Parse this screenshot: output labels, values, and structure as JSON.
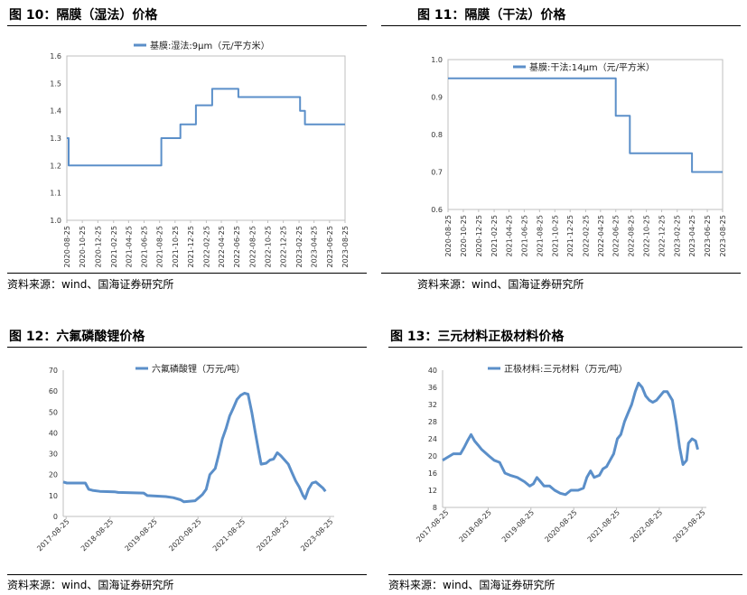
{
  "panels": [
    {
      "title": "图 10：隔膜（湿法）价格",
      "source": "资料来源：wind、国海证券研究所",
      "chart_data": {
        "type": "line",
        "title": "",
        "legend": "基膜:湿法:9μm（元/平方米）",
        "legend_position": "top",
        "xlabel": "",
        "ylabel": "",
        "ylim": [
          1.0,
          1.6
        ],
        "yticks": [
          1.0,
          1.1,
          1.2,
          1.3,
          1.4,
          1.5,
          1.6
        ],
        "ytick_labels": [
          "1.0",
          "1.1",
          "1.2",
          "1.3",
          "1.4",
          "1.5",
          "1.6"
        ],
        "xticks": [
          "2020-08-25",
          "2020-10-25",
          "2020-12-25",
          "2021-02-25",
          "2021-04-25",
          "2021-06-25",
          "2021-08-25",
          "2021-10-25",
          "2021-12-25",
          "2022-02-25",
          "2022-04-25",
          "2022-06-25",
          "2022-08-25",
          "2022-10-25",
          "2022-12-25",
          "2023-02-25",
          "2023-04-25",
          "2023-06-25",
          "2023-08-25"
        ],
        "xrange": [
          "2020-08-25",
          "2023-08-25"
        ],
        "step": true,
        "series": [
          {
            "color": "#5b8fc9",
            "points": [
              [
                "2020-08-25",
                1.3
              ],
              [
                "2020-09-01",
                1.2
              ],
              [
                "2021-09-01",
                1.3
              ],
              [
                "2021-11-15",
                1.35
              ],
              [
                "2022-01-15",
                1.42
              ],
              [
                "2022-03-20",
                1.48
              ],
              [
                "2022-07-01",
                1.45
              ],
              [
                "2023-03-01",
                1.4
              ],
              [
                "2023-03-20",
                1.35
              ],
              [
                "2023-08-25",
                1.35
              ]
            ]
          }
        ]
      }
    },
    {
      "title": "图 11：隔膜（干法）价格",
      "source": "资料来源：wind、国海证券研究所",
      "chart_data": {
        "type": "line",
        "title": "",
        "legend": "基膜:干法:14μm（元/平方米）",
        "legend_position": "top",
        "xlabel": "",
        "ylabel": "",
        "ylim": [
          0.6,
          1.0
        ],
        "yticks": [
          0.6,
          0.7,
          0.8,
          0.9,
          1.0
        ],
        "ytick_labels": [
          "0.6",
          "0.7",
          "0.8",
          "0.9",
          "1.0"
        ],
        "xticks": [
          "2020-08-25",
          "2020-10-25",
          "2020-12-25",
          "2021-02-25",
          "2021-04-25",
          "2021-06-25",
          "2021-08-25",
          "2021-10-25",
          "2021-12-25",
          "2022-02-25",
          "2022-04-25",
          "2022-06-25",
          "2022-08-25",
          "2022-10-25",
          "2022-12-25",
          "2023-02-25",
          "2023-04-25",
          "2023-06-25",
          "2023-08-25"
        ],
        "xrange": [
          "2020-08-25",
          "2023-08-25"
        ],
        "step": true,
        "series": [
          {
            "color": "#5b8fc9",
            "points": [
              [
                "2020-08-25",
                0.95
              ],
              [
                "2022-06-25",
                0.85
              ],
              [
                "2022-08-20",
                0.75
              ],
              [
                "2023-04-25",
                0.7
              ],
              [
                "2023-08-25",
                0.7
              ]
            ]
          }
        ]
      }
    },
    {
      "title": "图 12：六氟磷酸锂价格",
      "source": "资料来源：wind、国海证券研究所",
      "chart_data": {
        "type": "line",
        "title": "",
        "legend": "六氟磷酸锂（万元/吨）",
        "legend_position": "top",
        "xlabel": "",
        "ylabel": "",
        "ylim": [
          0,
          70
        ],
        "yticks": [
          0,
          10,
          20,
          30,
          40,
          50,
          60,
          70
        ],
        "ytick_labels": [
          "0",
          "10",
          "20",
          "30",
          "40",
          "50",
          "60",
          "70"
        ],
        "xticks": [
          "2017-08-25",
          "2018-08-25",
          "2019-08-25",
          "2020-08-25",
          "2021-08-25",
          "2022-08-25",
          "2023-08-25"
        ],
        "xrange": [
          "2017-08-01",
          "2023-10-01"
        ],
        "step": false,
        "series": [
          {
            "color": "#5b8fc9",
            "points": [
              [
                "2017-08-01",
                16.5
              ],
              [
                "2017-09-01",
                16
              ],
              [
                "2018-02-01",
                16
              ],
              [
                "2018-03-01",
                13
              ],
              [
                "2018-04-01",
                12.5
              ],
              [
                "2018-06-01",
                12
              ],
              [
                "2018-10-01",
                11.8
              ],
              [
                "2018-11-01",
                11.5
              ],
              [
                "2019-06-01",
                11.2
              ],
              [
                "2019-07-01",
                10
              ],
              [
                "2019-12-01",
                9.5
              ],
              [
                "2020-02-01",
                9
              ],
              [
                "2020-04-01",
                8
              ],
              [
                "2020-05-01",
                7
              ],
              [
                "2020-08-01",
                7.5
              ],
              [
                "2020-09-01",
                9
              ],
              [
                "2020-10-01",
                10.5
              ],
              [
                "2020-11-01",
                13
              ],
              [
                "2020-12-01",
                20
              ],
              [
                "2021-01-15",
                23
              ],
              [
                "2021-02-15",
                30
              ],
              [
                "2021-03-15",
                37
              ],
              [
                "2021-04-15",
                42
              ],
              [
                "2021-05-15",
                48
              ],
              [
                "2021-06-15",
                52
              ],
              [
                "2021-07-15",
                56
              ],
              [
                "2021-08-15",
                58
              ],
              [
                "2021-09-15",
                59
              ],
              [
                "2021-10-15",
                58.5
              ],
              [
                "2021-11-15",
                50
              ],
              [
                "2021-12-15",
                40
              ],
              [
                "2022-01-15",
                30
              ],
              [
                "2022-02-01",
                25
              ],
              [
                "2022-03-15",
                25.5
              ],
              [
                "2022-04-15",
                27
              ],
              [
                "2022-05-15",
                27.5
              ],
              [
                "2022-06-15",
                30.5
              ],
              [
                "2022-07-15",
                29
              ],
              [
                "2022-08-15",
                27
              ],
              [
                "2022-09-15",
                25
              ],
              [
                "2022-10-15",
                21
              ],
              [
                "2022-11-15",
                17
              ],
              [
                "2022-12-15",
                14
              ],
              [
                "2023-01-15",
                10
              ],
              [
                "2023-02-01",
                8.5
              ],
              [
                "2023-03-01",
                13
              ],
              [
                "2023-04-01",
                16
              ],
              [
                "2023-05-01",
                16.5
              ],
              [
                "2023-06-01",
                15
              ],
              [
                "2023-07-01",
                13.5
              ],
              [
                "2023-07-20",
                12
              ]
            ]
          }
        ]
      }
    },
    {
      "title": "图 13：三元材料正极材料价格",
      "source": "资料来源：wind、国海证券研究所",
      "chart_data": {
        "type": "line",
        "title": "",
        "legend": "正极材料:三元材料（万元/吨）",
        "legend_position": "top",
        "xlabel": "",
        "ylabel": "",
        "ylim": [
          8,
          40
        ],
        "yticks": [
          8,
          12,
          16,
          20,
          24,
          28,
          32,
          36,
          40
        ],
        "ytick_labels": [
          "8",
          "12",
          "16",
          "20",
          "24",
          "28",
          "32",
          "36",
          "40"
        ],
        "xticks": [
          "2017-08-25",
          "2018-08-25",
          "2019-08-25",
          "2020-08-25",
          "2021-08-25",
          "2022-08-25",
          "2023-08-25"
        ],
        "xrange": [
          "2017-08-01",
          "2023-10-01"
        ],
        "step": false,
        "series": [
          {
            "color": "#5b8fc9",
            "points": [
              [
                "2017-08-01",
                19
              ],
              [
                "2017-09-01",
                19.5
              ],
              [
                "2017-11-01",
                20.5
              ],
              [
                "2018-01-01",
                20.5
              ],
              [
                "2018-02-01",
                22
              ],
              [
                "2018-03-01",
                23.5
              ],
              [
                "2018-04-01",
                25
              ],
              [
                "2018-05-01",
                23.5
              ],
              [
                "2018-06-01",
                22.5
              ],
              [
                "2018-07-01",
                21.5
              ],
              [
                "2018-09-01",
                20
              ],
              [
                "2018-10-15",
                19
              ],
              [
                "2018-12-01",
                18.5
              ],
              [
                "2019-01-15",
                16
              ],
              [
                "2019-03-01",
                15.5
              ],
              [
                "2019-05-01",
                15
              ],
              [
                "2019-07-01",
                14
              ],
              [
                "2019-08-15",
                13
              ],
              [
                "2019-09-15",
                13.5
              ],
              [
                "2019-10-15",
                15
              ],
              [
                "2019-11-15",
                14
              ],
              [
                "2019-12-15",
                13
              ],
              [
                "2020-02-01",
                13
              ],
              [
                "2020-03-15",
                12
              ],
              [
                "2020-05-01",
                11.3
              ],
              [
                "2020-06-15",
                11
              ],
              [
                "2020-08-01",
                12
              ],
              [
                "2020-10-01",
                12
              ],
              [
                "2020-11-15",
                12.5
              ],
              [
                "2020-12-15",
                15
              ],
              [
                "2021-01-15",
                16.5
              ],
              [
                "2021-02-15",
                15
              ],
              [
                "2021-04-01",
                15.5
              ],
              [
                "2021-05-01",
                17
              ],
              [
                "2021-06-01",
                17.5
              ],
              [
                "2021-07-01",
                19
              ],
              [
                "2021-08-01",
                20.5
              ],
              [
                "2021-09-01",
                24
              ],
              [
                "2021-10-01",
                25
              ],
              [
                "2021-11-01",
                28
              ],
              [
                "2021-12-01",
                30
              ],
              [
                "2022-01-01",
                32
              ],
              [
                "2022-02-01",
                35
              ],
              [
                "2022-03-01",
                37
              ],
              [
                "2022-04-01",
                36
              ],
              [
                "2022-05-01",
                34
              ],
              [
                "2022-06-01",
                33
              ],
              [
                "2022-07-01",
                32.5
              ],
              [
                "2022-08-01",
                33
              ],
              [
                "2022-09-01",
                34
              ],
              [
                "2022-10-01",
                35
              ],
              [
                "2022-11-01",
                35
              ],
              [
                "2022-12-15",
                33
              ],
              [
                "2023-01-15",
                28
              ],
              [
                "2023-02-15",
                22
              ],
              [
                "2023-03-15",
                18
              ],
              [
                "2023-04-15",
                19
              ],
              [
                "2023-05-01",
                23
              ],
              [
                "2023-06-01",
                24
              ],
              [
                "2023-07-01",
                23.5
              ],
              [
                "2023-07-20",
                21.5
              ]
            ]
          }
        ]
      }
    }
  ]
}
